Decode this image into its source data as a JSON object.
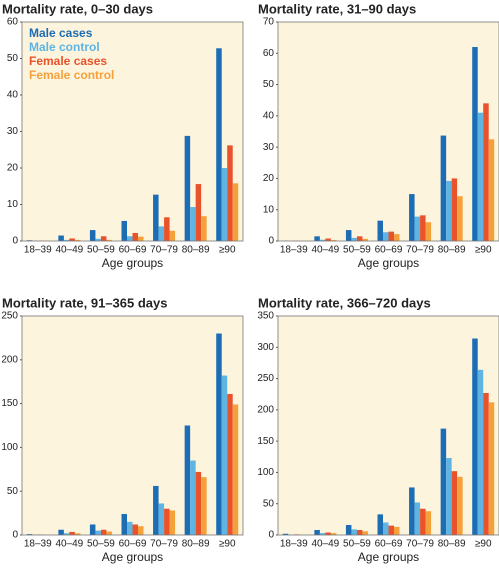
{
  "chart_data": [
    {
      "type": "bar",
      "title": "Mortality rate, 0–30 days",
      "xlabel": "Age groups",
      "categories": [
        "18–39",
        "40–49",
        "50–59",
        "60–69",
        "70–79",
        "80–89",
        "≥90"
      ],
      "ylim": [
        0,
        60
      ],
      "yticks": [
        0,
        10,
        20,
        30,
        40,
        50,
        60
      ],
      "legend": "upper left",
      "series": [
        {
          "name": "Male cases",
          "color": "#1c6db4",
          "values": [
            0.2,
            1.5,
            3,
            5.5,
            12.7,
            28.8,
            52.8
          ]
        },
        {
          "name": "Male control",
          "color": "#5fb4e2",
          "values": [
            0.1,
            0.3,
            0.6,
            1.3,
            4,
            9.3,
            20
          ]
        },
        {
          "name": "Female cases",
          "color": "#e8532b",
          "values": [
            0.1,
            0.7,
            1.3,
            2.2,
            6.5,
            15.6,
            26.2
          ]
        },
        {
          "name": "Female control",
          "color": "#f5a13b",
          "values": [
            0.1,
            0.3,
            0.3,
            1.2,
            2.8,
            6.8,
            15.8
          ]
        }
      ]
    },
    {
      "type": "bar",
      "title": "Mortality rate, 31–90 days",
      "xlabel": "Age groups",
      "categories": [
        "18–39",
        "40–49",
        "50–59",
        "60–69",
        "70–79",
        "80–89",
        "≥90"
      ],
      "ylim": [
        0,
        70
      ],
      "yticks": [
        0,
        10,
        20,
        30,
        40,
        50,
        60,
        70
      ],
      "series": [
        {
          "color": "#1c6db4",
          "values": [
            0.1,
            1.5,
            3.5,
            6.5,
            15,
            33.7,
            62
          ]
        },
        {
          "color": "#5fb4e2",
          "values": [
            0,
            0.4,
            1,
            2.8,
            7.8,
            19.2,
            41
          ]
        },
        {
          "color": "#e8532b",
          "values": [
            0.1,
            0.8,
            1.5,
            3,
            8.2,
            20,
            44
          ]
        },
        {
          "color": "#f5a13b",
          "values": [
            0,
            0.3,
            0.7,
            2.2,
            6,
            14.3,
            32.5
          ]
        }
      ]
    },
    {
      "type": "bar",
      "title": "Mortality rate, 91–365 days",
      "xlabel": "Age groups",
      "categories": [
        "18–39",
        "40–49",
        "50–59",
        "60–69",
        "70–79",
        "80–89",
        "≥90"
      ],
      "ylim": [
        0,
        250
      ],
      "yticks": [
        0,
        50,
        100,
        150,
        200,
        250
      ],
      "series": [
        {
          "color": "#1c6db4",
          "values": [
            1,
            6,
            12,
            24,
            56,
            125,
            230
          ]
        },
        {
          "color": "#5fb4e2",
          "values": [
            0.3,
            2,
            5,
            15,
            36,
            85,
            182
          ]
        },
        {
          "color": "#e8532b",
          "values": [
            0.5,
            3.5,
            6,
            12,
            30,
            72,
            161
          ]
        },
        {
          "color": "#f5a13b",
          "values": [
            0.3,
            2,
            4,
            10,
            28,
            66,
            149
          ]
        }
      ]
    },
    {
      "type": "bar",
      "title": "Mortality rate, 366–720 days",
      "xlabel": "Age groups",
      "categories": [
        "18–39",
        "40–49",
        "50–59",
        "60–69",
        "70–79",
        "80–89",
        "≥90"
      ],
      "ylim": [
        0,
        350
      ],
      "yticks": [
        0,
        50,
        100,
        150,
        200,
        250,
        300,
        350
      ],
      "series": [
        {
          "color": "#1c6db4",
          "values": [
            2,
            8,
            16,
            33,
            76,
            170,
            314
          ]
        },
        {
          "color": "#5fb4e2",
          "values": [
            0.5,
            3,
            9,
            20,
            52,
            123,
            264
          ]
        },
        {
          "color": "#e8532b",
          "values": [
            1,
            4,
            8,
            15,
            42,
            102,
            227
          ]
        },
        {
          "color": "#f5a13b",
          "values": [
            0.5,
            3,
            6,
            13,
            38,
            93,
            212
          ]
        }
      ]
    }
  ]
}
